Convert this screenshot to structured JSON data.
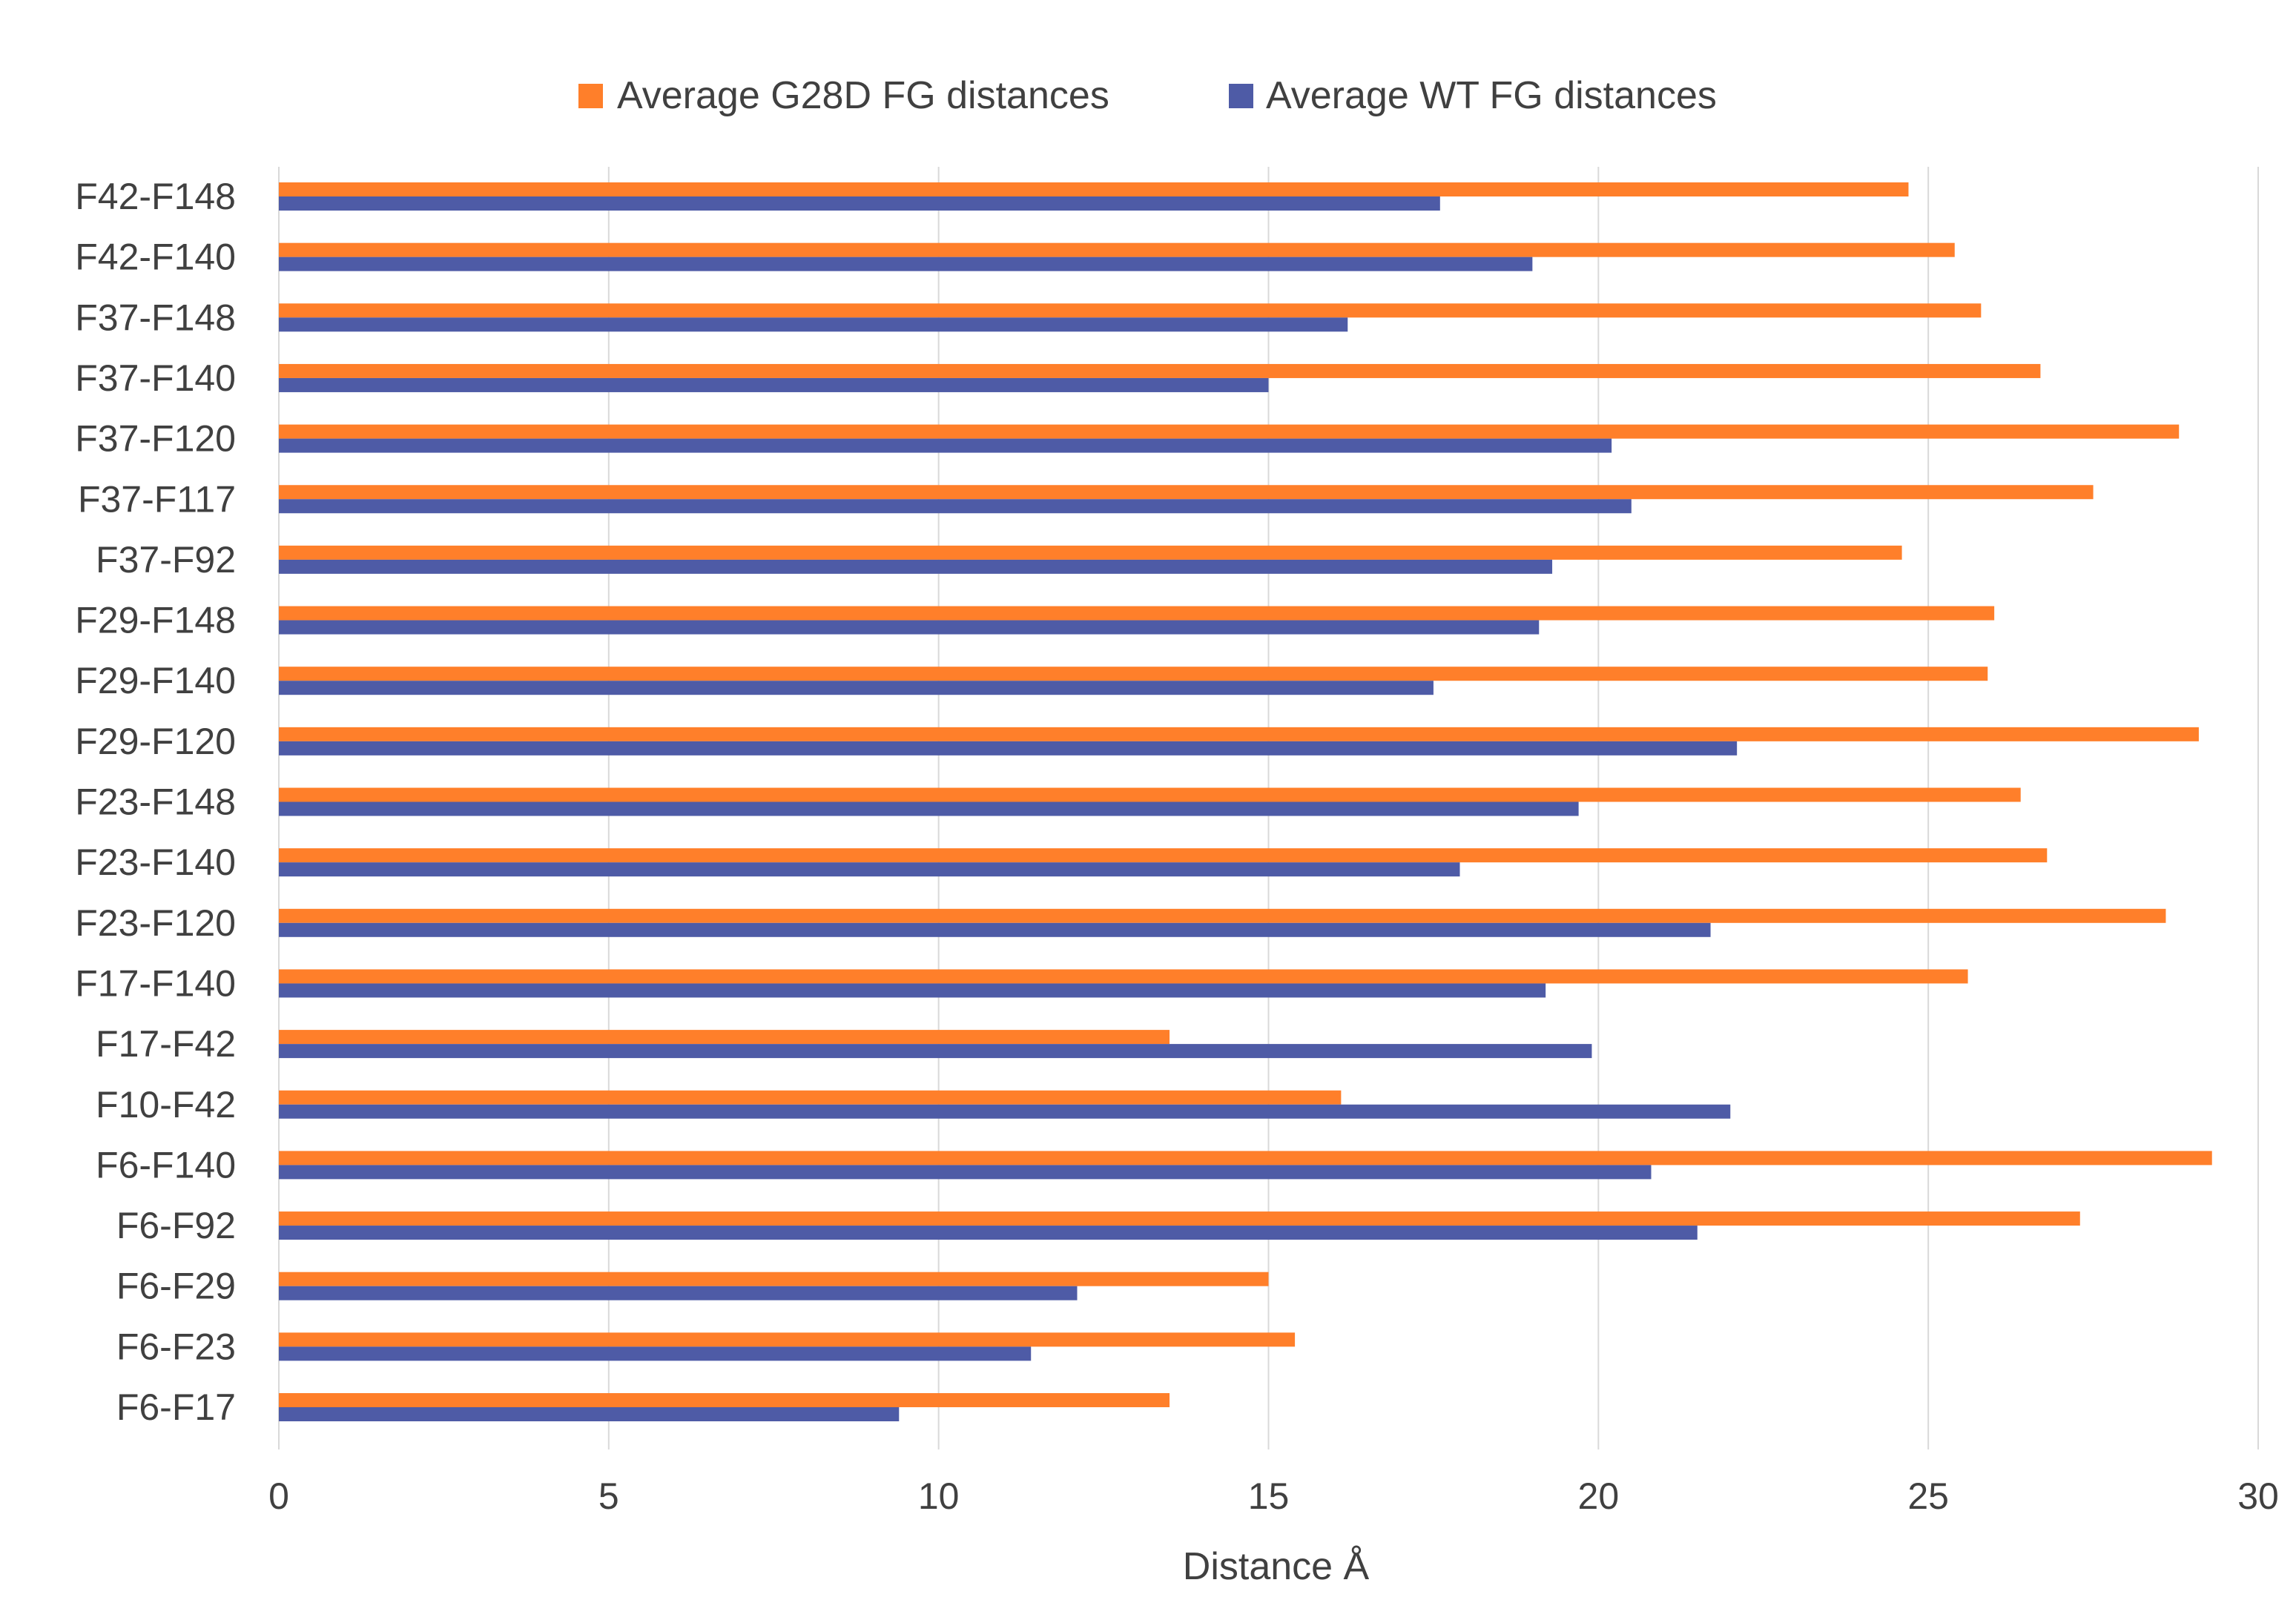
{
  "chart_data": {
    "type": "bar",
    "orientation": "horizontal",
    "title": "",
    "xlabel": "Distance Å",
    "ylabel": "",
    "xlim": [
      0,
      30
    ],
    "xticks": [
      0,
      5,
      10,
      15,
      20,
      25,
      30
    ],
    "grid": true,
    "legend_position": "top",
    "categories": [
      "F42-F148",
      "F42-F140",
      "F37-F148",
      "F37-F140",
      "F37-F120",
      "F37-F117",
      "F37-F92",
      "F29-F148",
      "F29-F140",
      "F29-F120",
      "F23-F148",
      "F23-F140",
      "F23-F120",
      "F17-F140",
      "F17-F42",
      "F10-F42",
      "F6-F140",
      "F6-F92",
      "F6-F29",
      "F6-F23",
      "F6-F17"
    ],
    "series": [
      {
        "name": "Average G28D FG distances",
        "color": "#FF7F2A",
        "values": [
          24.7,
          25.4,
          25.8,
          26.7,
          28.8,
          27.5,
          24.6,
          26.0,
          25.9,
          29.1,
          26.4,
          26.8,
          28.6,
          25.6,
          13.5,
          16.1,
          29.3,
          27.3,
          15.0,
          15.4,
          13.5
        ]
      },
      {
        "name": "Average WT FG distances",
        "color": "#4E5BA6",
        "values": [
          17.6,
          19.0,
          16.2,
          15.0,
          20.2,
          20.5,
          19.3,
          19.1,
          17.5,
          22.1,
          19.7,
          17.9,
          21.7,
          19.2,
          19.9,
          22.0,
          20.8,
          21.5,
          12.1,
          11.4,
          9.4
        ]
      }
    ]
  }
}
